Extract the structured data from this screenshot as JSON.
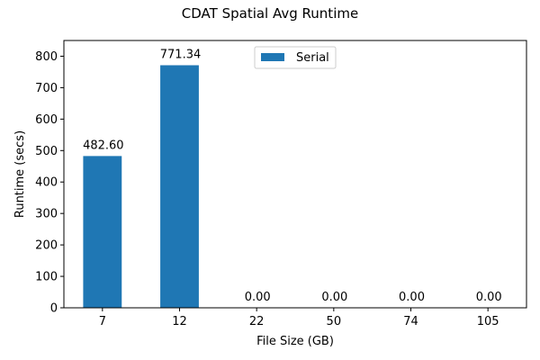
{
  "chart_data": {
    "type": "bar",
    "title": "CDAT Spatial Avg Runtime",
    "xlabel": "File Size (GB)",
    "ylabel": "Runtime (secs)",
    "categories": [
      "7",
      "12",
      "22",
      "50",
      "74",
      "105"
    ],
    "series": [
      {
        "name": "Serial",
        "values": [
          482.6,
          771.34,
          0.0,
          0.0,
          0.0,
          0.0
        ],
        "data_labels": [
          "482.60",
          "771.34",
          "0.00",
          "0.00",
          "0.00",
          "0.00"
        ],
        "color": "#1f77b4"
      }
    ],
    "ylim": [
      0,
      850
    ],
    "yticks": [
      0,
      100,
      200,
      300,
      400,
      500,
      600,
      700,
      800
    ],
    "grid": false,
    "legend_position": "top-center"
  }
}
